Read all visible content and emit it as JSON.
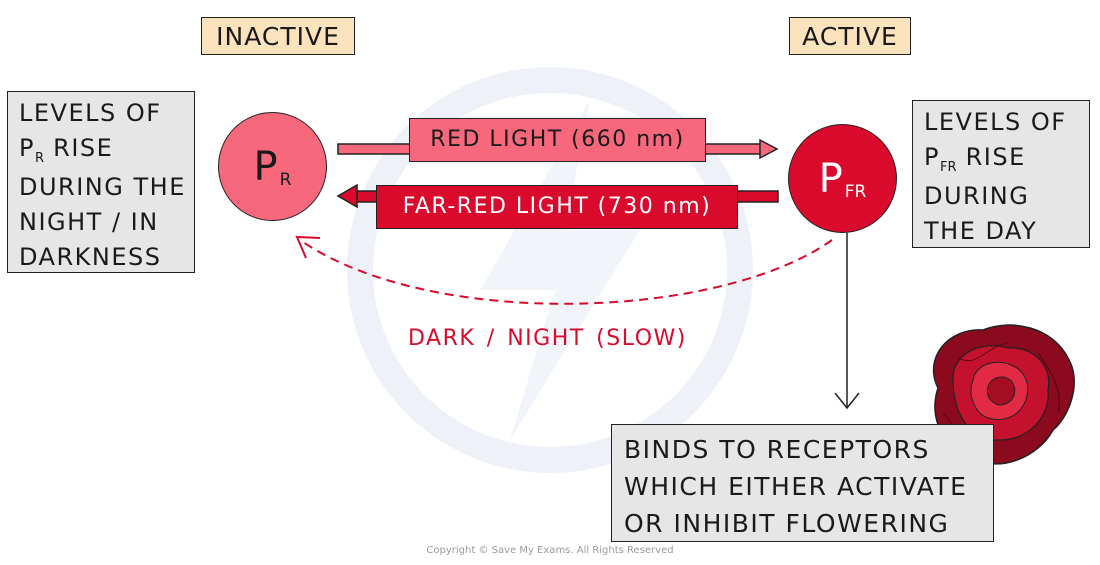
{
  "state_labels": {
    "inactive": "INACTIVE",
    "active": "ACTIVE"
  },
  "molecules": {
    "pr": {
      "letter": "P",
      "subscript": "R",
      "color": "#f7687d"
    },
    "pfr": {
      "letter": "P",
      "subscript": "FR",
      "color": "#d90a2c"
    }
  },
  "pr_box": {
    "line1": "LEVELS OF",
    "line2_letter": "P",
    "line2_sub": "R",
    "line2_rest": " RISE",
    "line3": "DURING THE",
    "line4": "NIGHT / IN",
    "line5": "DARKNESS"
  },
  "pfr_box": {
    "line1": "LEVELS OF",
    "line2_letter": "P",
    "line2_sub": "FR",
    "line2_rest": " RISE",
    "line3": "DURING",
    "line4": "THE DAY"
  },
  "arrows": {
    "red_light": "RED LIGHT (660 nm)",
    "far_red_light": "FAR-RED LIGHT (730 nm)",
    "dark_night": "DARK / NIGHT  (SLOW)"
  },
  "receptor_box": {
    "line1": "BINDS TO RECEPTORS",
    "line2": "WHICH EITHER ACTIVATE",
    "line3": "OR INHIBIT FLOWERING"
  },
  "copyright": "Copyright © Save My Exams. All Rights Reserved",
  "colors": {
    "pr_pink": "#f7687d",
    "pfr_red": "#d90a2c",
    "label_bg": "#fde3bd",
    "box_gray": "#e6e6e6"
  }
}
